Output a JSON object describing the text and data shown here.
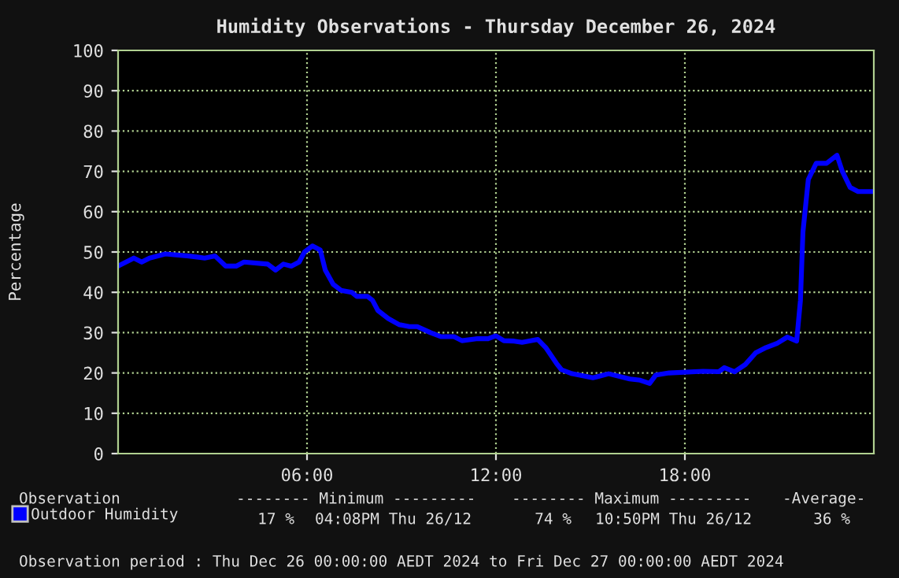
{
  "chart_data": {
    "type": "line",
    "title": "Humidity Observations - Thursday December 26, 2024",
    "ylabel": "Percentage",
    "x": [
      0,
      0.5,
      0.75,
      1.0,
      1.5,
      2.25,
      2.75,
      3.08,
      3.42,
      3.75,
      4.0,
      4.75,
      5.0,
      5.25,
      5.5,
      5.75,
      5.92,
      6.17,
      6.42,
      6.58,
      6.83,
      7.08,
      7.42,
      7.58,
      7.92,
      8.08,
      8.25,
      8.58,
      8.92,
      9.25,
      9.5,
      9.92,
      10.25,
      10.67,
      10.92,
      11.42,
      11.75,
      12.0,
      12.25,
      12.58,
      12.83,
      13.33,
      13.58,
      13.92,
      14.08,
      14.42,
      15.08,
      15.58,
      16.25,
      16.58,
      16.88,
      17.08,
      17.5,
      18.58,
      19.08,
      19.25,
      19.58,
      19.92,
      20.25,
      20.58,
      20.92,
      21.25,
      21.55,
      21.67,
      21.75,
      21.92,
      22.17,
      22.5,
      22.83,
      23.0,
      23.25,
      23.5,
      23.9
    ],
    "series": [
      {
        "name": "Outdoor Humidity",
        "color": "#0000ff",
        "values": [
          46.5,
          48.5,
          47.5,
          48.5,
          49.5,
          49,
          48.5,
          49,
          46.5,
          46.5,
          47.5,
          47,
          45.5,
          47,
          46.5,
          47.5,
          50,
          51.5,
          50.5,
          45.5,
          42,
          40.5,
          40,
          39,
          39,
          38,
          35.5,
          33.5,
          32,
          31.5,
          31.5,
          30,
          29,
          29,
          28,
          28.5,
          28.5,
          29.2,
          28,
          27.9,
          27.6,
          28.3,
          26.3,
          22.4,
          20.8,
          19.8,
          18.8,
          19.8,
          18.5,
          18.2,
          17.4,
          19.5,
          20,
          20.4,
          20.3,
          21.3,
          20.3,
          22.1,
          25,
          26.3,
          27.3,
          28.9,
          27.9,
          38,
          55,
          68,
          72,
          72,
          74,
          70,
          66,
          65,
          65
        ]
      }
    ],
    "xlim": [
      0,
      24
    ],
    "xticks": [
      {
        "value": 6,
        "label": "06:00"
      },
      {
        "value": 12,
        "label": "12:00"
      },
      {
        "value": 18,
        "label": "18:00"
      }
    ],
    "ylim": [
      0,
      100
    ],
    "yticks": [
      0,
      10,
      20,
      30,
      40,
      50,
      60,
      70,
      80,
      90,
      100
    ],
    "grid": true,
    "legend": "bottom",
    "line_style": "solid",
    "annotations": [
      "Observation",
      "-------- Minimum ---------",
      "-------- Maximum ---------",
      "-Average-",
      "17 %",
      "04:08PM Thu 26/12",
      "74 %",
      "10:50PM Thu 26/12",
      "36 %",
      "Observation period : Thu Dec 26 00:00:00 AEDT 2024 to Fri Dec 27 00:00:00 AEDT 2024"
    ]
  }
}
